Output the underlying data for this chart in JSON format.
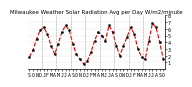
{
  "title": "Milwaukee Weather Solar Radiation Avg per Day W/m2/minute",
  "x_labels": [
    "S",
    "O",
    "N",
    "D",
    "J",
    "F",
    "M",
    "A",
    "M",
    "J",
    "J",
    "A",
    "S",
    "O",
    "N",
    "D",
    "J",
    "F",
    "M",
    "A",
    "M",
    "J",
    "J",
    "A",
    "S",
    "O",
    "N",
    "D",
    "J",
    "F",
    "M",
    "A",
    "M",
    "J",
    "J",
    "A",
    "S",
    "O"
  ],
  "values": [
    1.8,
    2.8,
    4.5,
    5.8,
    6.2,
    5.2,
    3.5,
    2.2,
    3.8,
    5.5,
    6.5,
    5.8,
    3.8,
    2.2,
    1.5,
    0.8,
    1.2,
    2.5,
    4.2,
    5.5,
    5.0,
    4.2,
    6.5,
    5.5,
    3.5,
    2.0,
    3.5,
    4.8,
    6.2,
    5.2,
    3.0,
    1.8,
    1.5,
    4.2,
    6.8,
    6.2,
    4.0,
    1.5
  ],
  "line_color": "#dd0000",
  "marker": "o",
  "marker_size": 1.5,
  "line_style": "--",
  "line_width": 0.8,
  "ylim": [
    0,
    8
  ],
  "yticks": [
    1,
    2,
    3,
    4,
    5,
    6,
    7,
    8
  ],
  "ytick_labels": [
    "1",
    "2",
    "3",
    "4",
    "5",
    "6",
    "7",
    "8"
  ],
  "background_color": "#ffffff",
  "grid_color": "#888888",
  "title_fontsize": 4.0,
  "tick_fontsize": 3.5,
  "grid_x_positions": [
    4,
    8,
    12,
    16,
    20,
    24,
    28,
    32
  ]
}
